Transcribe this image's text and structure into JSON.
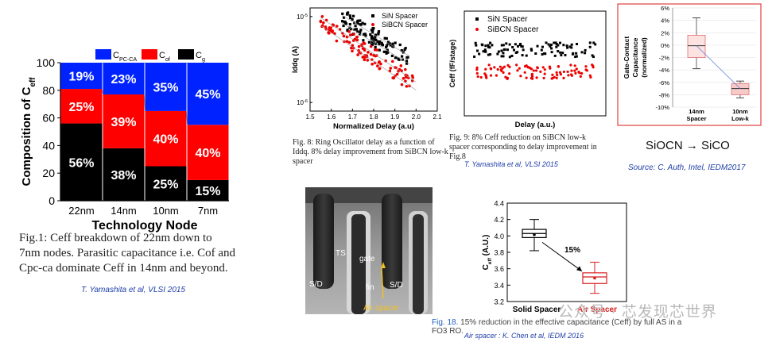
{
  "chart_data": [
    {
      "id": "ceff_breakdown",
      "type": "bar",
      "stacked": true,
      "categories": [
        "22nm",
        "14nm",
        "10nm",
        "7nm"
      ],
      "series": [
        {
          "name": "Cg",
          "legend": "C",
          "legend_sub": "g",
          "color": "#000000",
          "values": [
            56,
            38,
            25,
            15
          ],
          "labels": [
            "56%",
            "38%",
            "25%",
            "15%"
          ]
        },
        {
          "name": "Cof",
          "legend": "C",
          "legend_sub": "of",
          "color": "#ff0000",
          "values": [
            25,
            39,
            40,
            40
          ],
          "labels": [
            "25%",
            "39%",
            "40%",
            "40%"
          ]
        },
        {
          "name": "Cpc-ca",
          "legend": "C",
          "legend_sub": "PC-CA",
          "color": "#0022ff",
          "values": [
            19,
            23,
            35,
            45
          ],
          "labels": [
            "19%",
            "23%",
            "35%",
            "45%"
          ]
        }
      ],
      "yticks": [
        "0",
        "20",
        "40",
        "60",
        "80",
        "100"
      ],
      "ylim": [
        0,
        100
      ],
      "ylabel": "Composition of C",
      "ylabel_sub": "eff",
      "xlabel": "Technology Node",
      "caption": "Fig.1: Ceff breakdown of 22nm down to 7nm nodes. Parasitic capacitance i.e. Cof and Cpc-ca dominate Ceff in 14nm and beyond.",
      "cite": "T. Yamashita et al, VLSI 2015"
    },
    {
      "id": "ring_osc",
      "type": "scatter",
      "series": [
        {
          "name": "SiN Spacer",
          "color": "#000000",
          "x_range": [
            1.65,
            1.97
          ],
          "y_log_start": -5.02,
          "y_log_end": -5.5
        },
        {
          "name": "SiBCN Spacer",
          "color": "#ee0000",
          "x_range": [
            1.55,
            2.0
          ],
          "y_log_start": -5.05,
          "y_log_end": -5.8
        }
      ],
      "xticks": [
        "1.5",
        "1.6",
        "1.7",
        "1.8",
        "1.9",
        "2.0",
        "2.1"
      ],
      "xlim": [
        1.5,
        2.1
      ],
      "ytick_labels": [
        "10",
        "10"
      ],
      "ytick_sups": [
        "-5",
        "-6"
      ],
      "xlabel": "Normalized Delay (a.u)",
      "ylabel": "Iddq (A)",
      "caption": "Fig. 8:  Ring Oscillator delay as a function of Iddq. 8% delay improvement from SiBCN low-k spacer"
    },
    {
      "id": "ceff_delay",
      "type": "scatter",
      "series": [
        {
          "name": "SiN Spacer",
          "color": "#000000",
          "y_level": 0.63
        },
        {
          "name": "SiBCN Spacer",
          "color": "#ee0000",
          "y_level": 0.42
        }
      ],
      "xlabel": "Delay (a.u.)",
      "ylabel": "Ceff (fF/stage)",
      "caption": "Fig. 9:  8% Ceff reduction on SiBCN low-k spacer corresponding to delay improvement in Fig.8",
      "cite": "T. Yamashita et al, VLSI 2015"
    },
    {
      "id": "gate_contact",
      "type": "boxplot",
      "yticks": [
        "6%",
        "4%",
        "2%",
        "0%",
        "-2%",
        "-4%",
        "-6%",
        "-8%",
        "-10%"
      ],
      "ylim": [
        -10,
        6
      ],
      "categories": [
        "14nm\nSpacer",
        "10nm\nLow-k"
      ],
      "boxes": [
        {
          "min": -3.8,
          "q1": -2.0,
          "median": -0.1,
          "q3": 1.6,
          "max": 4.4
        },
        {
          "min": -8.5,
          "q1": -8.0,
          "median": -7.0,
          "q3": -6.2,
          "max": -5.8
        }
      ],
      "ylabel_lines": [
        "Gate-Contact",
        "Capacitance",
        "(normalized)"
      ],
      "annotation": "SiOCN → SiCO",
      "cite": "Source: C. Auth, Intel, IEDM2017"
    },
    {
      "id": "air_spacer",
      "type": "boxplot",
      "yticks": [
        "3.2",
        "3.4",
        "3.6",
        "3.8",
        "4.0",
        "4.2",
        "4.4"
      ],
      "ylim": [
        3.2,
        4.4
      ],
      "categories": [
        "Solid Spacer",
        "Air Spacer"
      ],
      "boxes": [
        {
          "min": 3.82,
          "q1": 3.98,
          "median": 4.03,
          "q3": 4.08,
          "max": 4.2,
          "color": "#000000"
        },
        {
          "min": 3.3,
          "q1": 3.42,
          "median": 3.5,
          "q3": 3.55,
          "max": 3.68,
          "color": "#d81e1e"
        }
      ],
      "ylabel": "C",
      "ylabel_sub": "eff",
      "ylabel_suffix": " (A.U.)",
      "annotation": "15%",
      "caption_prefix": "Fig. 18.",
      "caption": "15% reduction in the effective capacitance (Ceff) by full AS in a FO3 RO.",
      "cite": "Air spacer : K. Chen et al,  IEDM 2016"
    }
  ],
  "tem_image": {
    "labels": {
      "ts": "TS",
      "gate": "gate",
      "sd_left": "S/D",
      "fin": "fin",
      "sd_right": "S/D",
      "air_spacer": "Air spacer"
    }
  },
  "watermark": {
    "text": "公众号 · 芯发现芯世界"
  }
}
